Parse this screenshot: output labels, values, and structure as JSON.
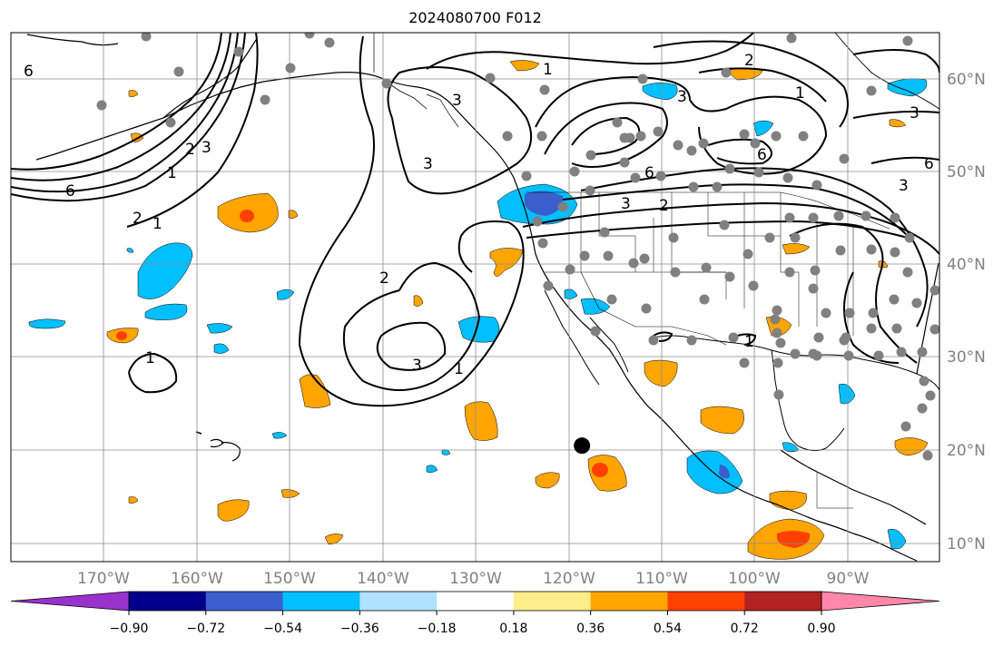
{
  "title": "2024080700 F012",
  "map": {
    "projection": "plate-carree",
    "lon_range": [
      -180,
      -80
    ],
    "lat_range": [
      8,
      65
    ],
    "grid_lon": [
      -170,
      -160,
      -150,
      -140,
      -130,
      -120,
      -110,
      -100,
      -90
    ],
    "grid_lat": [
      10,
      20,
      30,
      40,
      50,
      60
    ],
    "lon_labels": [
      "170°W",
      "160°W",
      "150°W",
      "140°W",
      "130°W",
      "120°W",
      "110°W",
      "100°W",
      "90°W"
    ],
    "lat_labels": [
      "10°N",
      "20°N",
      "30°N",
      "40°N",
      "50°N",
      "60°N"
    ],
    "contour_labels": [
      "1",
      "2",
      "3",
      "6"
    ],
    "marker": {
      "lon": -118.5,
      "lat": 20.5,
      "color": "#000000"
    },
    "station_color": "#808080"
  },
  "colorbar": {
    "ticks": [
      "−0.90",
      "−0.72",
      "−0.54",
      "−0.36",
      "−0.18",
      "0.18",
      "0.36",
      "0.54",
      "0.72",
      "0.90"
    ],
    "colors": [
      "#9932cc",
      "#00008b",
      "#3a5fcd",
      "#00bfff",
      "#b0e2ff",
      "#ffffff",
      "#ffec8b",
      "#ffa500",
      "#ff4000",
      "#b22222",
      "#ff88aa"
    ]
  }
}
